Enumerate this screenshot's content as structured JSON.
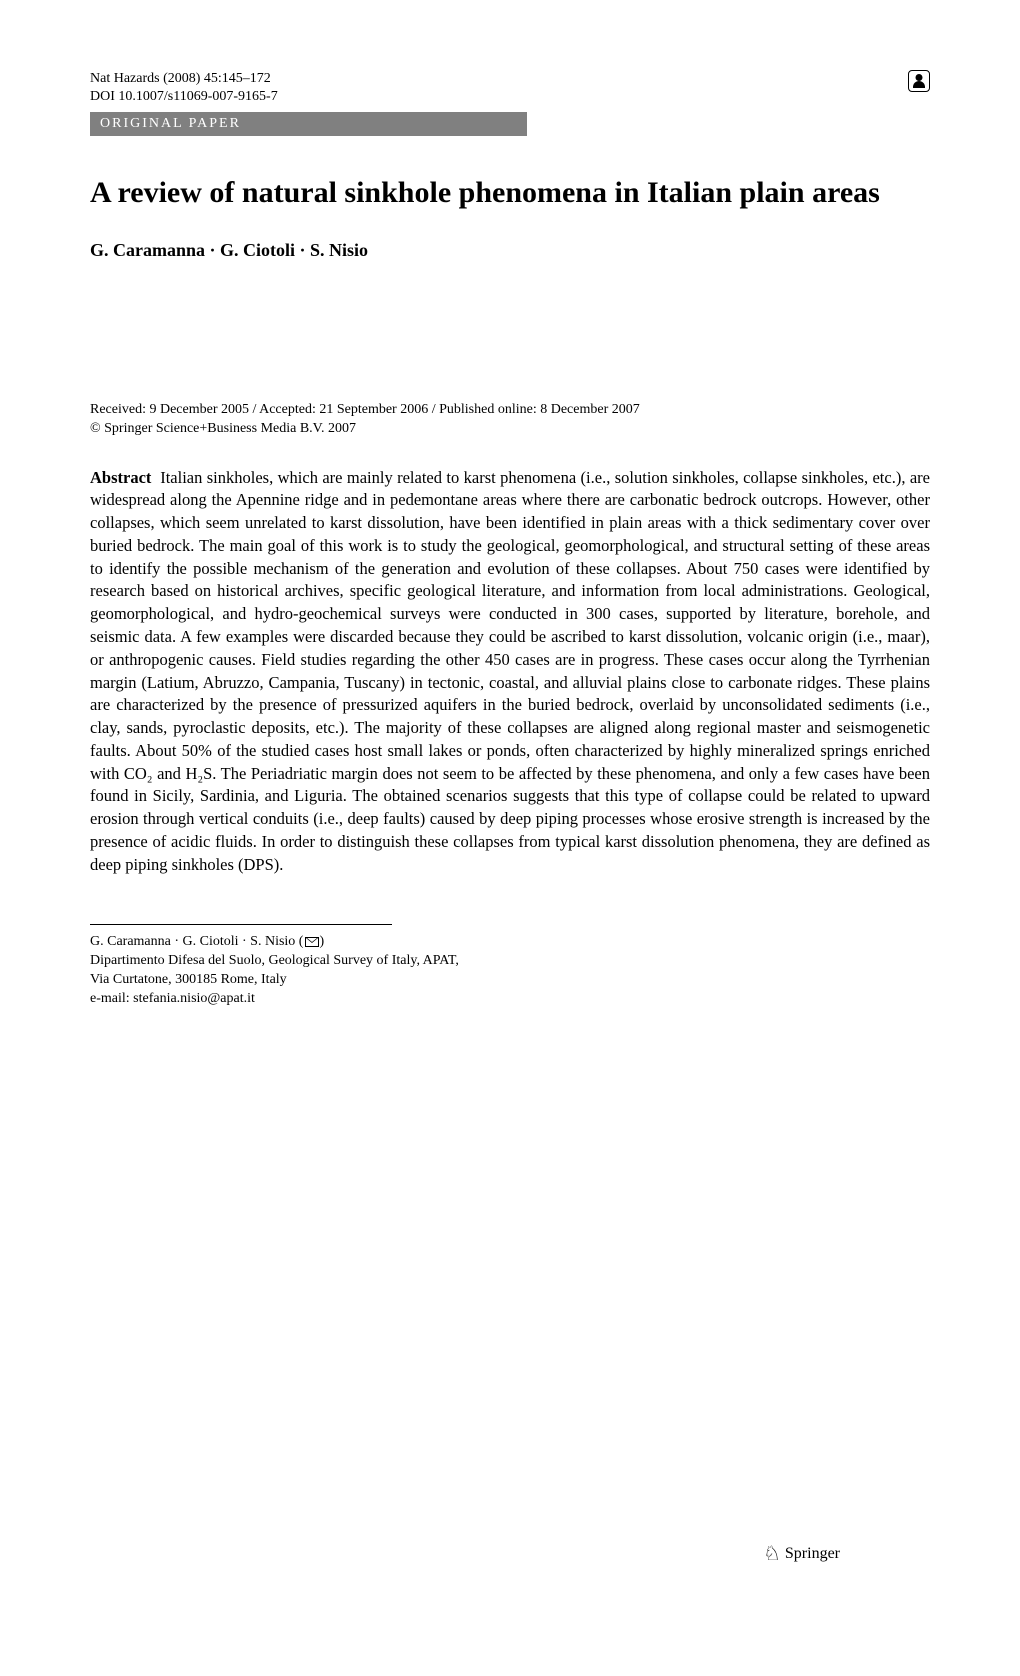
{
  "header": {
    "journal_line": "Nat Hazards (2008) 45:145–172",
    "doi_line": "DOI 10.1007/s11069-007-9165-7"
  },
  "paper_type": "ORIGINAL PAPER",
  "title": "A review of natural sinkhole phenomena in Italian plain areas",
  "authors": "G. Caramanna · G. Ciotoli · S. Nisio",
  "dates": {
    "received_line": "Received: 9 December 2005 / Accepted: 21 September 2006 / Published online: 8 December 2007",
    "copyright_line": "© Springer Science+Business Media B.V. 2007"
  },
  "abstract": {
    "label": "Abstract",
    "text": "Italian sinkholes, which are mainly related to karst phenomena (i.e., solution sinkholes, collapse sinkholes, etc.), are widespread along the Apennine ridge and in pedemontane areas where there are carbonatic bedrock outcrops. However, other collapses, which seem unrelated to karst dissolution, have been identified in plain areas with a thick sedimentary cover over buried bedrock. The main goal of this work is to study the geological, geomorphological, and structural setting of these areas to identify the possible mechanism of the generation and evolution of these collapses. About 750 cases were identified by research based on historical archives, specific geological literature, and information from local administrations. Geological, geomorphological, and hydro-geochemical surveys were conducted in 300 cases, supported by literature, borehole, and seismic data. A few examples were discarded because they could be ascribed to karst dissolution, volcanic origin (i.e., maar), or anthropogenic causes. Field studies regarding the other 450 cases are in progress. These cases occur along the Tyrrhenian margin (Latium, Abruzzo, Campania, Tuscany) in tectonic, coastal, and alluvial plains close to carbonate ridges. These plains are characterized by the presence of pressurized aquifers in the buried bedrock, overlaid by unconsolidated sediments (i.e., clay, sands, pyroclastic deposits, etc.). The majority of these collapses are aligned along regional master and seismogenetic faults. About 50% of the studied cases host small lakes or ponds, often characterized by highly mineralized springs enriched with CO₂ and H₂S. The Periadriatic margin does not seem to be affected by these phenomena, and only a few cases have been found in Sicily, Sardinia, and Liguria. The obtained scenarios suggests that this type of collapse could be related to upward erosion through vertical conduits (i.e., deep faults) caused by deep piping processes whose erosive strength is increased by the presence of acidic fluids. In order to distinguish these collapses from typical karst dissolution phenomena, they are defined as deep piping sinkholes (DPS)."
  },
  "footnote": {
    "authors_line": "G. Caramanna · G. Ciotoli · S. Nisio (",
    "authors_line_close": ")",
    "affiliation": "Dipartimento Difesa del Suolo, Geological Survey of Italy, APAT,",
    "address": "Via Curtatone, 300185 Rome, Italy",
    "email": "e-mail: stefania.nisio@apat.it"
  },
  "publisher_logo": "Springer",
  "colors": {
    "bar_bg": "#808080",
    "bar_text": "#ffffff",
    "text": "#000000",
    "background": "#ffffff"
  },
  "typography": {
    "title_fontsize": 30,
    "authors_fontsize": 18,
    "body_fontsize": 16.5,
    "header_fontsize": 14,
    "footnote_fontsize": 14,
    "font_family": "Times New Roman"
  }
}
